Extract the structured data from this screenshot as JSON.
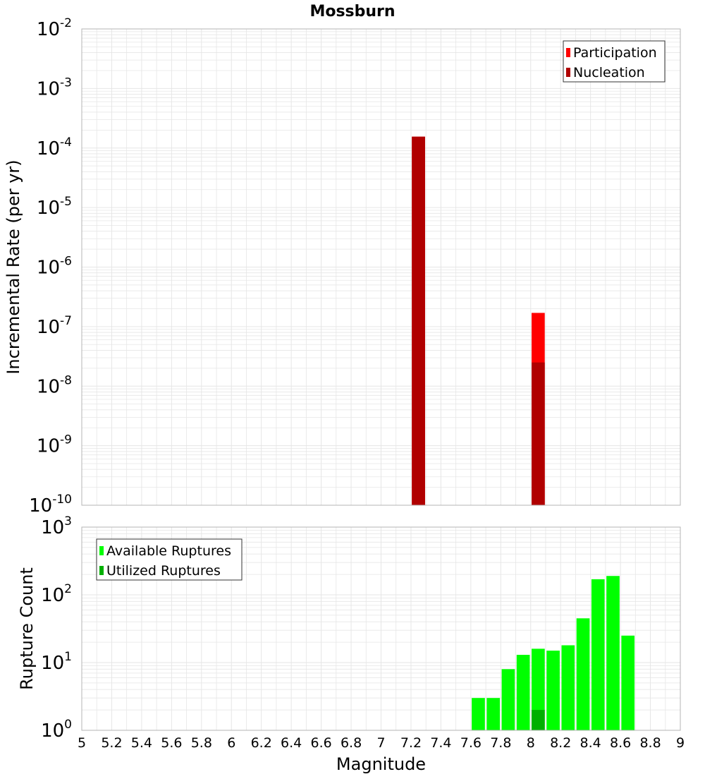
{
  "title": "Mossburn",
  "colors": {
    "participation": "#ff0000",
    "nucleation": "#b00000",
    "available": "#00ff00",
    "utilized": "#00b000",
    "grid": "#e6e6e6",
    "frame": "#b4b4b4"
  },
  "chart_data": [
    {
      "type": "bar",
      "panel": "top",
      "ylabel": "Incremental Rate (per yr)",
      "yscale": "log",
      "ylim_exp": [
        -10,
        -2
      ],
      "xlim": [
        5,
        9
      ],
      "bin_width": 0.1,
      "legend_position": "top-right",
      "series": [
        {
          "name": "Participation",
          "color": "#ff0000",
          "points": [
            {
              "x": 7.25,
              "y": 0.000155
            },
            {
              "x": 8.05,
              "y": 1.7e-07
            }
          ]
        },
        {
          "name": "Nucleation",
          "color": "#b00000",
          "points": [
            {
              "x": 7.25,
              "y": 0.000155
            },
            {
              "x": 8.05,
              "y": 2.5e-08
            }
          ]
        }
      ]
    },
    {
      "type": "bar",
      "panel": "bottom",
      "xlabel": "Magnitude",
      "ylabel": "Rupture Count",
      "yscale": "log",
      "ylim_exp": [
        0,
        3
      ],
      "xlim": [
        5,
        9
      ],
      "bin_width": 0.1,
      "legend_position": "top-left",
      "series": [
        {
          "name": "Available Ruptures",
          "color": "#00ff00",
          "points": [
            {
              "x": 7.25,
              "y": 1
            },
            {
              "x": 7.65,
              "y": 3
            },
            {
              "x": 7.75,
              "y": 3
            },
            {
              "x": 7.85,
              "y": 8
            },
            {
              "x": 7.95,
              "y": 13
            },
            {
              "x": 8.05,
              "y": 16
            },
            {
              "x": 8.15,
              "y": 15
            },
            {
              "x": 8.25,
              "y": 18
            },
            {
              "x": 8.35,
              "y": 45
            },
            {
              "x": 8.45,
              "y": 170
            },
            {
              "x": 8.55,
              "y": 190
            },
            {
              "x": 8.65,
              "y": 25
            }
          ]
        },
        {
          "name": "Utilized Ruptures",
          "color": "#00b000",
          "points": [
            {
              "x": 7.25,
              "y": 1
            },
            {
              "x": 7.85,
              "y": 1
            },
            {
              "x": 8.05,
              "y": 2
            },
            {
              "x": 8.55,
              "y": 1
            }
          ]
        }
      ]
    }
  ],
  "x_ticks": [
    "5",
    "5.2",
    "5.4",
    "5.6",
    "5.8",
    "6",
    "6.2",
    "6.4",
    "6.6",
    "6.8",
    "7",
    "7.2",
    "7.4",
    "7.6",
    "7.8",
    "8",
    "8.2",
    "8.4",
    "8.6",
    "8.8",
    "9"
  ]
}
